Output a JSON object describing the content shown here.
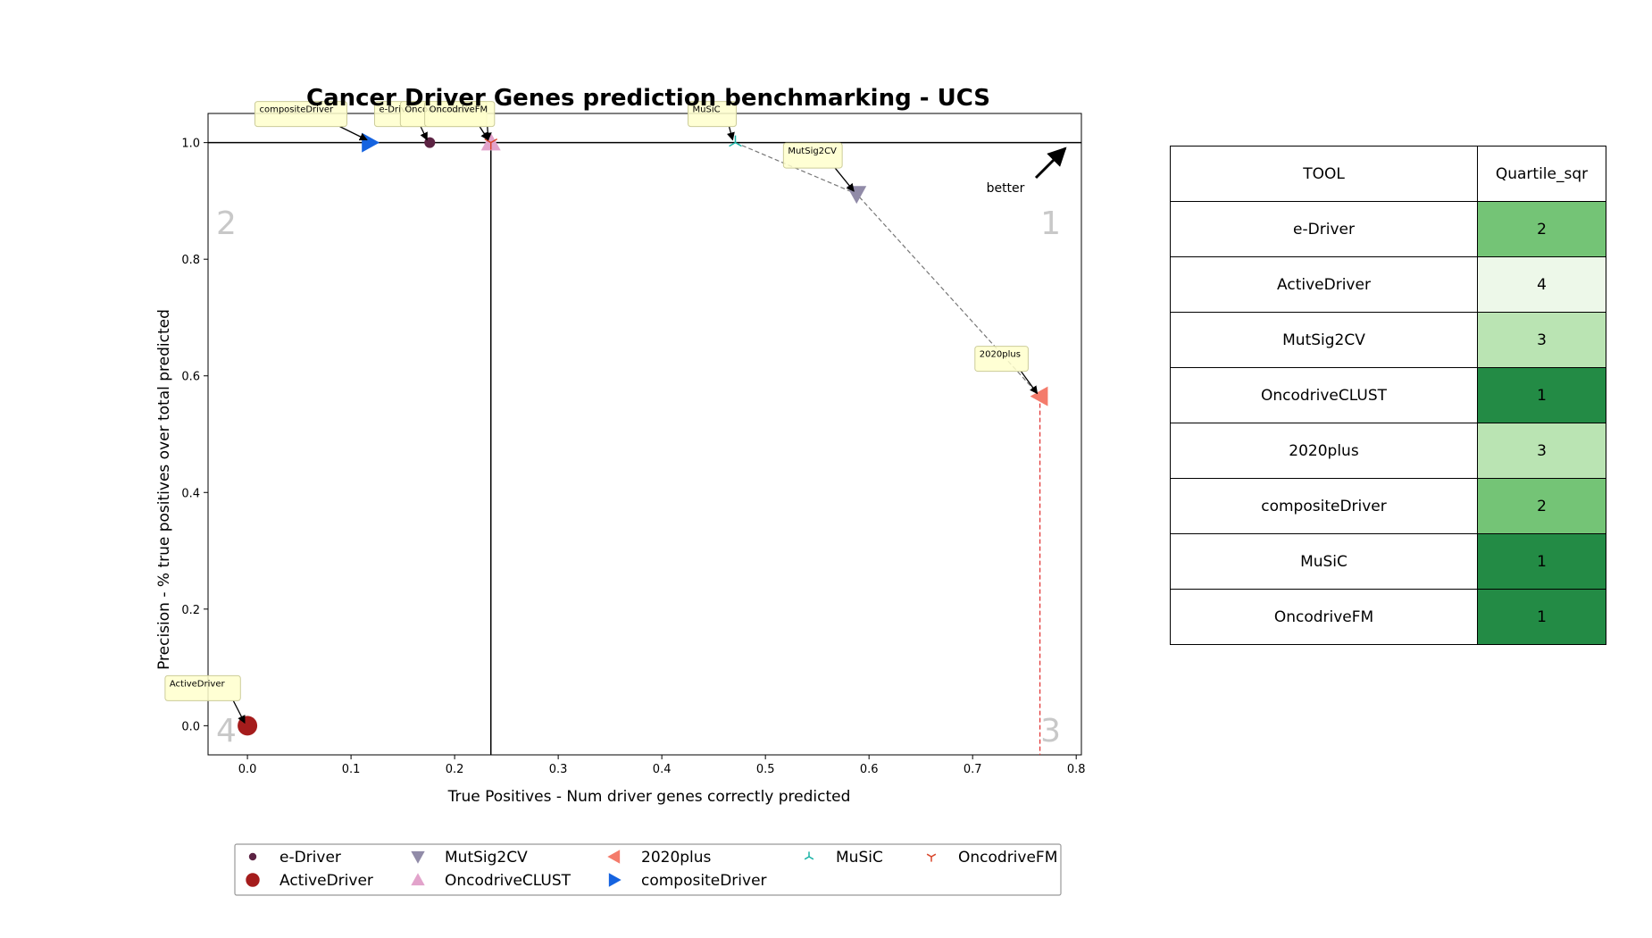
{
  "chart_data": {
    "type": "scatter",
    "title": "Cancer Driver Genes prediction benchmarking - UCS",
    "xlabel": "True Positives - Num driver genes correctly predicted",
    "ylabel": "Precision - % true positives over total predicted",
    "xlim": [
      -0.038,
      0.805
    ],
    "ylim": [
      -0.05,
      1.05
    ],
    "xticks": [
      "0.0",
      "0.1",
      "0.2",
      "0.3",
      "0.4",
      "0.5",
      "0.6",
      "0.7",
      "0.8"
    ],
    "yticks": [
      "0.0",
      "0.2",
      "0.4",
      "0.6",
      "0.8",
      "1.0"
    ],
    "grid": false,
    "quadrant_labels": [
      "1",
      "2",
      "3",
      "4"
    ],
    "quadrant_divider": {
      "x": 0.235,
      "y": 1.0
    },
    "better_label": "better",
    "pareto_frontier": [
      "MuSiC",
      "MutSig2CV",
      "2020plus"
    ],
    "series": [
      {
        "name": "e-Driver",
        "x": 0.176,
        "y": 1.0,
        "marker": "circle-small",
        "color": "#5c2343",
        "callout": "e-Driver"
      },
      {
        "name": "ActiveDriver",
        "x": 0.0,
        "y": 0.0,
        "marker": "circle-large",
        "color": "#a51c1c",
        "callout": "ActiveDriver"
      },
      {
        "name": "MutSig2CV",
        "x": 0.588,
        "y": 0.912,
        "marker": "triangle-down",
        "color": "#918ba8",
        "callout": "MutSig2CV"
      },
      {
        "name": "OncodriveCLUST",
        "x": 0.235,
        "y": 1.0,
        "marker": "triangle-up",
        "color": "#e2a3cb",
        "callout": "OncodriveCLUST"
      },
      {
        "name": "2020plus",
        "x": 0.765,
        "y": 0.565,
        "marker": "triangle-left",
        "color": "#f47b6b",
        "callout": "2020plus"
      },
      {
        "name": "compositeDriver",
        "x": 0.118,
        "y": 1.0,
        "marker": "triangle-right",
        "color": "#1563e0",
        "callout": "compositeDriver"
      },
      {
        "name": "MuSiC",
        "x": 0.471,
        "y": 1.0,
        "marker": "tri-down",
        "color": "#1ab3a6",
        "callout": "MuSiC"
      },
      {
        "name": "OncodriveFM",
        "x": 0.235,
        "y": 1.0,
        "marker": "tri-up",
        "color": "#d8452a",
        "callout": "OncodriveFM"
      }
    ]
  },
  "table": {
    "headers": [
      "TOOL",
      "Quartile_sqr"
    ],
    "rows": [
      {
        "tool": "e-Driver",
        "quartile": "2",
        "color": "#74c476"
      },
      {
        "tool": "ActiveDriver",
        "quartile": "4",
        "color": "#edf8e9"
      },
      {
        "tool": "MutSig2CV",
        "quartile": "3",
        "color": "#bae4b3"
      },
      {
        "tool": "OncodriveCLUST",
        "quartile": "1",
        "color": "#238b45"
      },
      {
        "tool": "2020plus",
        "quartile": "3",
        "color": "#bae4b3"
      },
      {
        "tool": "compositeDriver",
        "quartile": "2",
        "color": "#74c476"
      },
      {
        "tool": "MuSiC",
        "quartile": "1",
        "color": "#238b45"
      },
      {
        "tool": "OncodriveFM",
        "quartile": "1",
        "color": "#238b45"
      }
    ]
  }
}
